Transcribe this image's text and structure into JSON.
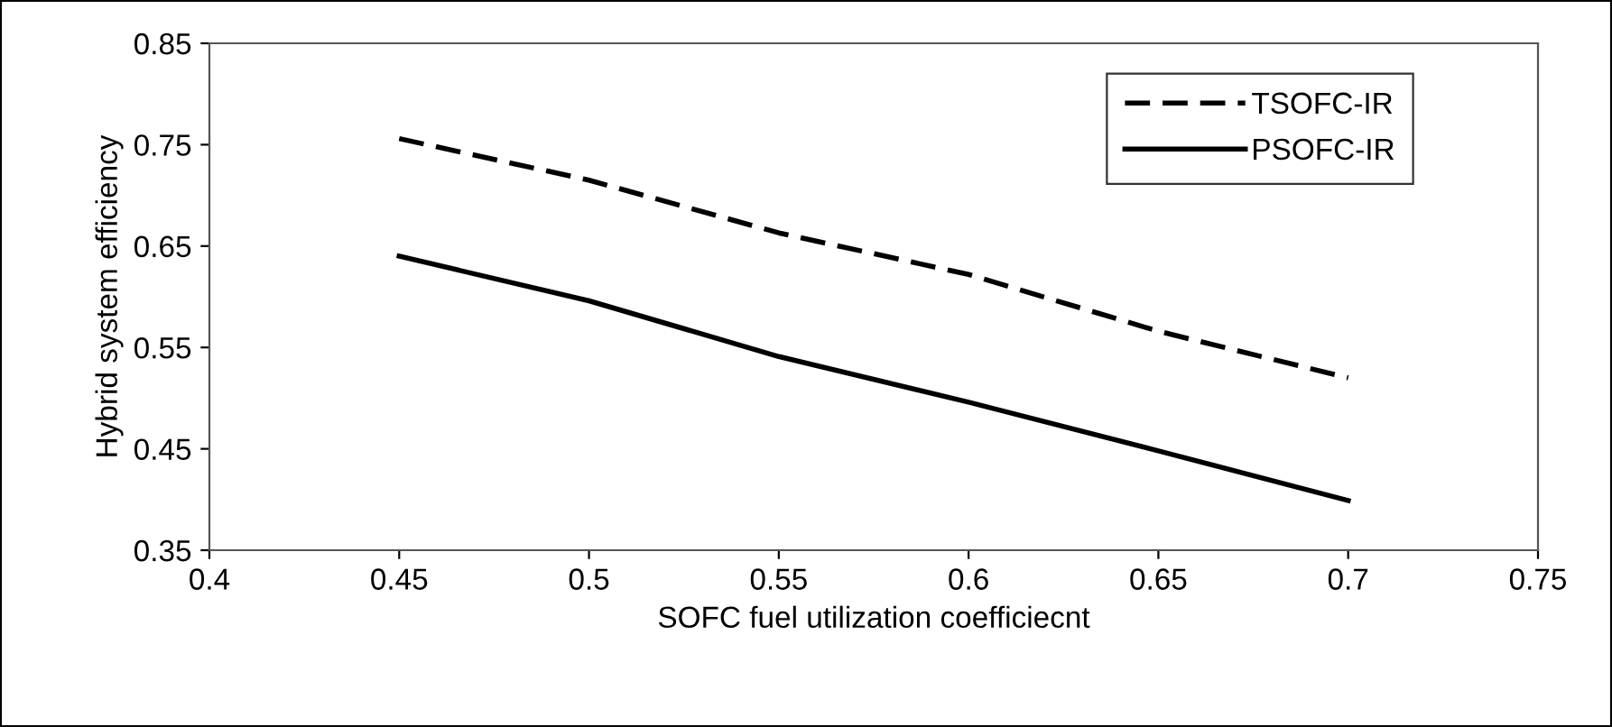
{
  "chart_data": {
    "type": "line",
    "xlabel": "SOFC fuel utilization coefficiecnt",
    "ylabel": "Hybrid system efficiency",
    "x": [
      0.45,
      0.5,
      0.55,
      0.6,
      0.65,
      0.7
    ],
    "series": [
      {
        "name": "TSOFC-IR",
        "color": "#000000",
        "line_style": "dashed",
        "values": [
          0.756,
          0.715,
          0.663,
          0.622,
          0.566,
          0.52
        ]
      },
      {
        "name": "PSOFC-IR",
        "color": "#000000",
        "line_style": "solid",
        "values": [
          0.64,
          0.596,
          0.541,
          0.496,
          0.448,
          0.399
        ]
      }
    ],
    "xlim": [
      0.4,
      0.75
    ],
    "xticks": [
      0.4,
      0.45,
      0.5,
      0.55,
      0.6,
      0.65,
      0.7,
      0.75
    ],
    "ylim": [
      0.35,
      0.85
    ],
    "yticks": [
      0.35,
      0.45,
      0.55,
      0.65,
      0.75,
      0.85
    ],
    "grid": false,
    "legend": "top right",
    "marker": "none"
  }
}
